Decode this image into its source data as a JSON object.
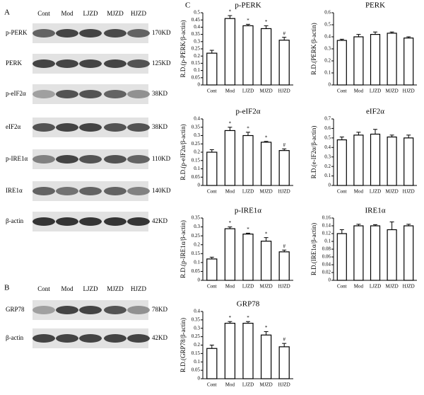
{
  "panel_labels": [
    "A",
    "B",
    "C"
  ],
  "blots_a": {
    "lanes": [
      "Cont",
      "Mod",
      "LJZD",
      "MJZD",
      "HJZD"
    ],
    "rows": [
      {
        "protein": "p-PERK",
        "size": "170KD"
      },
      {
        "protein": "PERK",
        "size": "125KD"
      },
      {
        "protein": "p-eIF2α",
        "size": "38KD"
      },
      {
        "protein": "eIF2α",
        "size": "38KD"
      },
      {
        "protein": "p-IRE1α",
        "size": "110KD"
      },
      {
        "protein": "IRE1α",
        "size": "140KD"
      },
      {
        "protein": "β-actin",
        "size": "42KD"
      }
    ]
  },
  "blots_b": {
    "lanes": [
      "Cont",
      "Mod",
      "LJZD",
      "MJZD",
      "HJZD"
    ],
    "rows": [
      {
        "protein": "GRP78",
        "size": "78KD"
      },
      {
        "protein": "β-actin",
        "size": "42KD"
      }
    ]
  },
  "chart_data": [
    {
      "type": "bar",
      "title": "p-PERK",
      "y_label": "R.D.(p-PERK/β-actin)",
      "categories": [
        "Cont",
        "Mod",
        "LJZD",
        "MJZD",
        "HJZD"
      ],
      "values": [
        0.22,
        0.46,
        0.41,
        0.39,
        0.31
      ],
      "errors": [
        0.02,
        0.02,
        0.01,
        0.02,
        0.02
      ],
      "markers": [
        null,
        "*",
        "*",
        "*",
        "#"
      ],
      "ylim": [
        0,
        0.5
      ],
      "yticks": [
        0,
        0.05,
        0.1,
        0.15,
        0.2,
        0.25,
        0.3,
        0.35,
        0.4,
        0.45,
        0.5
      ],
      "color": "#ffffff",
      "edgecolor": "#000000"
    },
    {
      "type": "bar",
      "title": "PERK",
      "y_label": "R.D.(PERK/β-actin)",
      "categories": [
        "Cont",
        "Mod",
        "LJZD",
        "MJZD",
        "HJZD"
      ],
      "values": [
        0.37,
        0.4,
        0.42,
        0.43,
        0.39
      ],
      "errors": [
        0.01,
        0.02,
        0.02,
        0.01,
        0.01
      ],
      "markers": [
        null,
        null,
        null,
        null,
        null
      ],
      "ylim": [
        0,
        0.6
      ],
      "yticks": [
        0,
        0.1,
        0.2,
        0.3,
        0.4,
        0.5,
        0.6
      ],
      "color": "#ffffff",
      "edgecolor": "#000000"
    },
    {
      "type": "bar",
      "title": "p-eIF2α",
      "y_label": "R.D.(p-eIF2α/β-actin)",
      "categories": [
        "Cont",
        "Mod",
        "LJZD",
        "MJZD",
        "HJZD"
      ],
      "values": [
        0.2,
        0.33,
        0.3,
        0.26,
        0.21
      ],
      "errors": [
        0.015,
        0.02,
        0.02,
        0.005,
        0.01
      ],
      "markers": [
        null,
        "*",
        "*",
        "*",
        "#"
      ],
      "ylim": [
        0,
        0.4
      ],
      "yticks": [
        0,
        0.05,
        0.1,
        0.15,
        0.2,
        0.25,
        0.3,
        0.35,
        0.4
      ],
      "color": "#ffffff",
      "edgecolor": "#000000"
    },
    {
      "type": "bar",
      "title": "eIF2α",
      "y_label": "R.D.(e-IF2α/β-actin)",
      "categories": [
        "Cont",
        "Mod",
        "LJZD",
        "MJZD",
        "HJZD"
      ],
      "values": [
        0.48,
        0.53,
        0.54,
        0.51,
        0.5
      ],
      "errors": [
        0.03,
        0.03,
        0.05,
        0.02,
        0.03
      ],
      "markers": [
        null,
        null,
        null,
        null,
        null
      ],
      "ylim": [
        0,
        0.7
      ],
      "yticks": [
        0,
        0.1,
        0.2,
        0.3,
        0.4,
        0.5,
        0.6,
        0.7
      ],
      "color": "#ffffff",
      "edgecolor": "#000000"
    },
    {
      "type": "bar",
      "title": "p-IRE1α",
      "y_label": "R.D.(p-IRE1α/β-actin)",
      "categories": [
        "Cont",
        "Mod",
        "LJZD",
        "MJZD",
        "HJZD"
      ],
      "values": [
        0.12,
        0.29,
        0.26,
        0.22,
        0.16
      ],
      "errors": [
        0.01,
        0.01,
        0.005,
        0.02,
        0.01
      ],
      "markers": [
        null,
        "*",
        "*",
        "*",
        "#"
      ],
      "ylim": [
        0,
        0.35
      ],
      "yticks": [
        0,
        0.05,
        0.1,
        0.15,
        0.2,
        0.25,
        0.3,
        0.35
      ],
      "color": "#ffffff",
      "edgecolor": "#000000"
    },
    {
      "type": "bar",
      "title": "IRE1α",
      "y_label": "R.D.(IRE1α/β-actin)",
      "categories": [
        "Cont",
        "Mod",
        "LJZD",
        "MJZD",
        "HJZD"
      ],
      "values": [
        0.12,
        0.14,
        0.14,
        0.13,
        0.14
      ],
      "errors": [
        0.01,
        0.004,
        0.003,
        0.02,
        0.004
      ],
      "markers": [
        null,
        null,
        null,
        null,
        null
      ],
      "ylim": [
        0,
        0.16
      ],
      "yticks": [
        0,
        0.02,
        0.04,
        0.06,
        0.08,
        0.1,
        0.12,
        0.14,
        0.16
      ],
      "color": "#ffffff",
      "edgecolor": "#000000"
    },
    {
      "type": "bar",
      "title": "GRP78",
      "y_label": "R.D.(GRP78/β-actin)",
      "categories": [
        "Cont",
        "Mod",
        "LJZD",
        "MJZD",
        "HJZD"
      ],
      "values": [
        0.18,
        0.33,
        0.33,
        0.26,
        0.19
      ],
      "errors": [
        0.02,
        0.01,
        0.01,
        0.02,
        0.02
      ],
      "markers": [
        null,
        "*",
        "*",
        "*",
        "#"
      ],
      "ylim": [
        0,
        0.4
      ],
      "yticks": [
        0,
        0.05,
        0.1,
        0.15,
        0.2,
        0.25,
        0.3,
        0.35,
        0.4
      ],
      "color": "#ffffff",
      "edgecolor": "#000000"
    }
  ]
}
